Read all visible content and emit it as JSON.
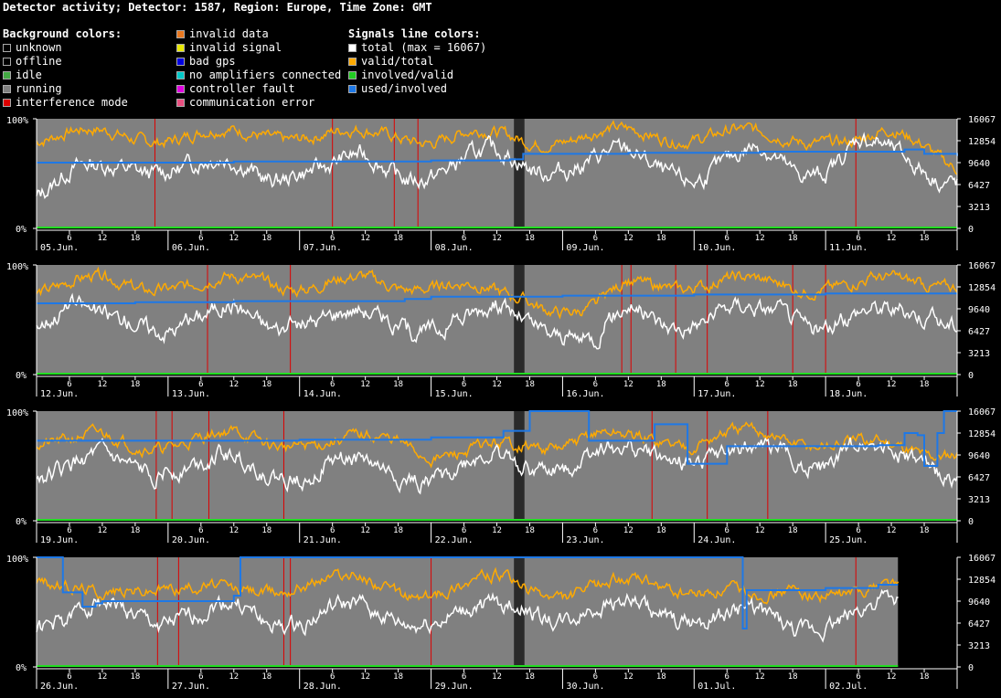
{
  "title": "Detector activity; Detector: 1587, Region: Europe, Time Zone: GMT",
  "legends": {
    "background": {
      "header": "Background colors:",
      "items": [
        {
          "label": "unknown",
          "color": "#000000"
        },
        {
          "label": "offline",
          "color": "#000000"
        },
        {
          "label": "idle",
          "color": "#44aa44"
        },
        {
          "label": "running",
          "color": "#808080"
        },
        {
          "label": "interference mode",
          "color": "#dd0000"
        }
      ]
    },
    "background2": {
      "items": [
        {
          "label": "invalid data",
          "color": "#e87820"
        },
        {
          "label": "invalid signal",
          "color": "#e8e800"
        },
        {
          "label": "bad gps",
          "color": "#0000e0"
        },
        {
          "label": "no amplifiers connected",
          "color": "#00c8c8"
        },
        {
          "label": "controller fault",
          "color": "#e000e0"
        },
        {
          "label": "communication error",
          "color": "#e85080"
        }
      ]
    },
    "signals": {
      "header": "Signals line colors:",
      "items": [
        {
          "label": "total (max = 16067)",
          "color": "#ffffff"
        },
        {
          "label": "valid/total",
          "color": "#ffaa00"
        },
        {
          "label": "involved/valid",
          "color": "#22cc22"
        },
        {
          "label": "used/involved",
          "color": "#1e78e6"
        }
      ]
    }
  },
  "chart_data": {
    "type": "line",
    "yleft_ticks": [
      "100%",
      "0%"
    ],
    "yright_ticks": [
      "16067",
      "12854",
      "9640",
      "6427",
      "3213",
      "0"
    ],
    "hour_ticks": [
      "6",
      "12",
      "18"
    ],
    "colors": {
      "running": "#808080",
      "gap": "#2a2a2a",
      "interference": "#dd0000",
      "total": "#ffffff",
      "valid": "#ffaa00",
      "used": "#1e78e6",
      "involved": "#22dd22"
    },
    "rows": [
      {
        "days": [
          "05.Jun.",
          "06.Jun.",
          "07.Jun.",
          "08.Jun.",
          "09.Jun.",
          "10.Jun.",
          "11.Jun."
        ],
        "running_end": 7.0,
        "gap": [
          3.63,
          3.71
        ],
        "interference": [
          0.9,
          2.25,
          2.72,
          2.9,
          6.23
        ],
        "used": [
          [
            0,
            0.6
          ],
          [
            1.5,
            0.61
          ],
          [
            3.0,
            0.62
          ],
          [
            3.6,
            0.63
          ],
          [
            3.7,
            0.68
          ],
          [
            4.5,
            0.69
          ],
          [
            5.5,
            0.7
          ],
          [
            6.6,
            0.72
          ],
          [
            6.75,
            0.68
          ],
          [
            7.0,
            0.66
          ]
        ],
        "total_base": [
          0.38,
          0.5,
          0.48,
          0.56,
          0.62,
          0.58,
          0.52,
          0.47,
          0.6,
          0.55,
          0.58,
          0.5,
          0.56,
          0.6,
          0.62,
          0.58,
          0.62,
          0.6,
          0.62,
          0.55,
          0.52,
          0.58,
          0.66,
          0.54,
          0.6,
          0.78,
          0.62,
          0.55,
          0.5
        ],
        "valid_base": [
          0.85,
          0.86,
          0.84,
          0.83,
          0.85,
          0.86,
          0.84,
          0.85,
          0.87,
          0.86,
          0.84,
          0.85,
          0.83,
          0.86,
          0.82,
          0.8,
          0.84,
          0.86,
          0.85,
          0.84,
          0.86,
          0.87,
          0.83,
          0.82,
          0.84,
          0.78,
          0.85,
          0.78,
          0.6
        ],
        "seed": 1
      },
      {
        "days": [
          "12.Jun.",
          "13.Jun.",
          "14.Jun.",
          "15.Jun.",
          "16.Jun.",
          "17.Jun.",
          "18.Jun."
        ],
        "running_end": 7.0,
        "gap": [
          3.63,
          3.71
        ],
        "interference": [
          1.3,
          1.93,
          4.45,
          4.52,
          4.86,
          5.1,
          5.75,
          6.0
        ],
        "used": [
          [
            0,
            0.65
          ],
          [
            0.75,
            0.66
          ],
          [
            1.5,
            0.67
          ],
          [
            2.8,
            0.69
          ],
          [
            3.0,
            0.71
          ],
          [
            4.0,
            0.72
          ],
          [
            5.0,
            0.73
          ],
          [
            6.0,
            0.74
          ],
          [
            7.0,
            0.74
          ]
        ],
        "total_base": [
          0.55,
          0.6,
          0.45,
          0.52,
          0.5,
          0.5,
          0.55,
          0.48,
          0.55,
          0.52,
          0.5,
          0.45,
          0.5,
          0.48,
          0.55,
          0.5,
          0.45,
          0.3,
          0.55,
          0.5,
          0.55,
          0.58,
          0.52,
          0.55,
          0.5,
          0.55,
          0.5,
          0.58,
          0.55
        ],
        "valid_base": [
          0.8,
          0.82,
          0.84,
          0.8,
          0.83,
          0.82,
          0.84,
          0.85,
          0.82,
          0.83,
          0.84,
          0.8,
          0.85,
          0.82,
          0.7,
          0.68,
          0.62,
          0.6,
          0.8,
          0.82,
          0.84,
          0.85,
          0.82,
          0.8,
          0.84,
          0.83,
          0.82,
          0.84,
          0.86
        ],
        "seed": 2
      },
      {
        "days": [
          "19.Jun.",
          "20.Jun.",
          "21.Jun.",
          "22.Jun.",
          "23.Jun.",
          "24.Jun.",
          "25.Jun."
        ],
        "running_end": 7.0,
        "gap": [
          3.63,
          3.71
        ],
        "interference": [
          0.91,
          1.03,
          1.31,
          1.88,
          4.68,
          5.1,
          5.56
        ],
        "used": [
          [
            0,
            0.73
          ],
          [
            1.0,
            0.73
          ],
          [
            2.0,
            0.74
          ],
          [
            3.0,
            0.76
          ],
          [
            3.55,
            0.82
          ],
          [
            3.75,
            1.0
          ],
          [
            4.1,
            1.0
          ],
          [
            4.2,
            0.73
          ],
          [
            4.55,
            0.73
          ],
          [
            4.7,
            0.88
          ],
          [
            4.9,
            0.88
          ],
          [
            4.95,
            0.52
          ],
          [
            5.2,
            0.52
          ],
          [
            5.25,
            0.68
          ],
          [
            6.4,
            0.69
          ],
          [
            6.6,
            0.8
          ],
          [
            6.7,
            0.78
          ],
          [
            6.75,
            0.5
          ],
          [
            6.85,
            0.8
          ],
          [
            6.9,
            1.0
          ],
          [
            7.0,
            1.0
          ]
        ],
        "total_base": [
          0.5,
          0.45,
          0.5,
          0.48,
          0.55,
          0.5,
          0.5,
          0.45,
          0.48,
          0.5,
          0.45,
          0.42,
          0.46,
          0.48,
          0.5,
          0.52,
          0.56,
          0.62,
          0.55,
          0.6,
          0.65,
          0.55,
          0.6,
          0.62,
          0.58,
          0.68,
          0.56,
          0.52,
          0.48
        ],
        "valid_base": [
          0.75,
          0.72,
          0.74,
          0.7,
          0.72,
          0.74,
          0.76,
          0.72,
          0.74,
          0.7,
          0.72,
          0.75,
          0.62,
          0.6,
          0.65,
          0.7,
          0.72,
          0.78,
          0.72,
          0.74,
          0.75,
          0.78,
          0.76,
          0.72,
          0.74,
          0.7,
          0.66,
          0.62,
          0.68
        ],
        "seed": 3
      },
      {
        "days": [
          "26.Jun.",
          "27.Jun.",
          "28.Jun.",
          "29.Jun.",
          "30.Jun.",
          "01.Jul.",
          "02.Jul."
        ],
        "running_end": 6.55,
        "gap": [
          3.63,
          3.71
        ],
        "interference": [
          0.92,
          1.08,
          1.88,
          1.93,
          3.0,
          6.23
        ],
        "used": [
          [
            0,
            1.0
          ],
          [
            0.18,
            1.0
          ],
          [
            0.2,
            0.68
          ],
          [
            0.3,
            0.68
          ],
          [
            0.35,
            0.55
          ],
          [
            0.45,
            0.58
          ],
          [
            0.5,
            0.6
          ],
          [
            1.0,
            0.6
          ],
          [
            1.4,
            0.6
          ],
          [
            1.5,
            0.65
          ],
          [
            1.55,
            1.0
          ],
          [
            3.0,
            1.0
          ],
          [
            4.0,
            1.0
          ],
          [
            5.35,
            1.0
          ],
          [
            5.37,
            0.35
          ],
          [
            5.4,
            0.7
          ],
          [
            6.0,
            0.72
          ],
          [
            6.4,
            0.75
          ],
          [
            6.55,
            0.75
          ]
        ],
        "total_base": [
          0.45,
          0.4,
          0.52,
          0.5,
          0.48,
          0.45,
          0.5,
          0.42,
          0.48,
          0.5,
          0.45,
          0.42,
          0.5,
          0.46,
          0.48,
          0.55,
          0.5,
          0.52,
          0.5,
          0.48,
          0.5,
          0.45,
          0.42,
          0.35,
          0.45,
          0.48,
          0.5,
          0.55
        ],
        "valid_base": [
          0.85,
          0.7,
          0.62,
          0.72,
          0.78,
          0.72,
          0.65,
          0.7,
          0.8,
          0.82,
          0.75,
          0.68,
          0.7,
          0.75,
          0.78,
          0.72,
          0.68,
          0.72,
          0.75,
          0.74,
          0.72,
          0.68,
          0.6,
          0.72,
          0.7,
          0.66,
          0.72,
          0.6
        ],
        "seed": 4
      }
    ]
  }
}
